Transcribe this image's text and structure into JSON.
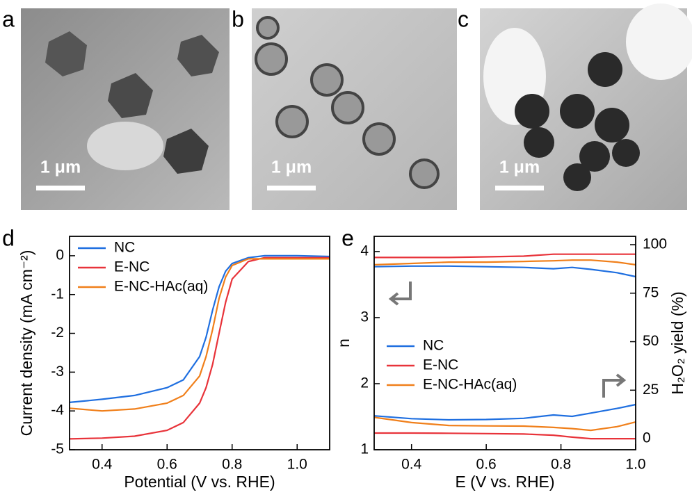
{
  "panels": [
    {
      "label": "a",
      "scale_bar": "1 μm"
    },
    {
      "label": "b",
      "scale_bar": "1 μm"
    },
    {
      "label": "c",
      "scale_bar": "1 μm"
    }
  ],
  "chart_data": [
    {
      "type": "line",
      "panel_label": "d",
      "xlabel": "Potential (V vs. RHE)",
      "ylabel": "Current density (mA cm⁻²)",
      "x": [
        0.3,
        0.4,
        0.5,
        0.6,
        0.65,
        0.7,
        0.72,
        0.74,
        0.76,
        0.78,
        0.8,
        0.85,
        0.9,
        1.0,
        1.1
      ],
      "series": [
        {
          "name": "NC",
          "color": "#1f6fe0",
          "values": [
            -3.78,
            -3.7,
            -3.6,
            -3.4,
            -3.2,
            -2.6,
            -2.1,
            -1.4,
            -0.8,
            -0.4,
            -0.2,
            -0.05,
            0,
            0,
            -0.02
          ]
        },
        {
          "name": "E-NC",
          "color": "#e8333a",
          "values": [
            -4.72,
            -4.7,
            -4.65,
            -4.5,
            -4.3,
            -3.8,
            -3.4,
            -2.8,
            -2.0,
            -1.2,
            -0.6,
            -0.15,
            -0.05,
            -0.05,
            -0.05
          ]
        },
        {
          "name": "E-NC-HAc(aq)",
          "color": "#f07f1a",
          "values": [
            -3.93,
            -4.0,
            -3.95,
            -3.8,
            -3.6,
            -3.1,
            -2.6,
            -1.9,
            -1.1,
            -0.55,
            -0.25,
            -0.08,
            -0.08,
            -0.08,
            -0.08
          ]
        }
      ],
      "xlim": [
        0.3,
        1.1
      ],
      "ylim": [
        -5,
        0.5
      ],
      "xticks": [
        0.4,
        0.6,
        0.8,
        {
          "value": 1,
          "label": "1.0"
        }
      ],
      "yticks": [
        0,
        -1,
        -2,
        -3,
        -4,
        -5
      ],
      "legend": "upper left"
    },
    {
      "type": "line",
      "panel_label": "e",
      "xlabel": "E (V vs. RHE)",
      "ylabel": "n",
      "y2label": "H₂O₂ yield (%)",
      "x": [
        0.3,
        0.4,
        0.5,
        0.6,
        0.7,
        0.78,
        0.83,
        0.88,
        0.95,
        1.0
      ],
      "series": [
        {
          "name": "NC",
          "color": "#1f6fe0",
          "values": [
            3.77,
            3.78,
            3.78,
            3.77,
            3.76,
            3.74,
            3.76,
            3.73,
            3.68,
            3.62
          ]
        },
        {
          "name": "E-NC",
          "color": "#e8333a",
          "values": [
            3.91,
            3.91,
            3.91,
            3.92,
            3.93,
            3.96,
            3.96,
            3.96,
            3.96,
            3.96
          ]
        },
        {
          "name": "E-NC-HAc(aq)",
          "color": "#f07f1a",
          "values": [
            3.8,
            3.82,
            3.84,
            3.84,
            3.85,
            3.86,
            3.87,
            3.87,
            3.84,
            3.8
          ]
        },
        {
          "color": "#1f6fe0",
          "axis": "y2",
          "values": [
            11.8,
            10.3,
            9.7,
            9.9,
            10.5,
            12.2,
            11.5,
            13.2,
            15.6,
            17.6
          ]
        },
        {
          "color": "#e8333a",
          "axis": "y2",
          "values": [
            2.9,
            2.9,
            2.8,
            2.6,
            2.4,
            1.8,
            0.8,
            0,
            0,
            0
          ]
        },
        {
          "color": "#f07f1a",
          "axis": "y2",
          "values": [
            11,
            8.3,
            6.8,
            6.6,
            6.5,
            5.8,
            5.2,
            4.3,
            6.2,
            8.6
          ]
        }
      ],
      "xlim": [
        0.3,
        1.0
      ],
      "ylim": [
        1,
        4.23
      ],
      "y2lim": [
        -5.7,
        104.3
      ],
      "xticks": [
        0.4,
        0.6,
        0.8,
        {
          "value": 1,
          "label": "1.0"
        }
      ],
      "yticks": [
        1,
        2,
        3,
        4
      ],
      "y2ticks": [
        0,
        25,
        50,
        75,
        100
      ],
      "legend": "center left"
    }
  ]
}
